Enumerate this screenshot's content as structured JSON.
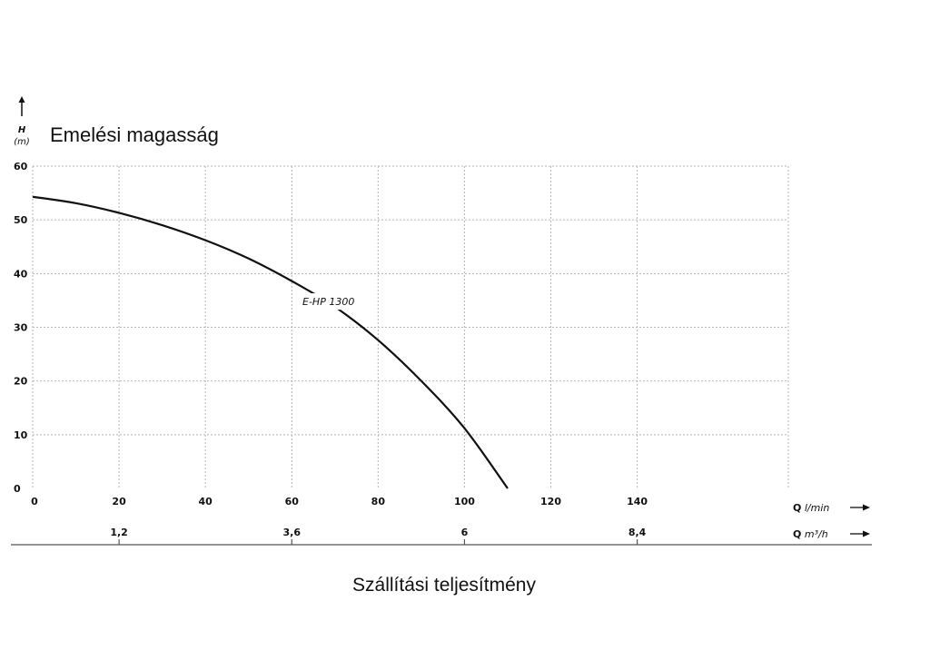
{
  "chart_data": {
    "type": "line",
    "title": "Emelési magasság",
    "xlabel": "Szállítási teljesítmény",
    "y_axis": {
      "symbol": "H",
      "unit": "(m)",
      "ticks": [
        0,
        10,
        20,
        30,
        40,
        50,
        60
      ],
      "range": [
        0,
        60
      ]
    },
    "x_axis_primary": {
      "symbol": "Q",
      "unit": "l/min",
      "ticks": [
        0,
        20,
        40,
        60,
        80,
        100,
        120,
        140
      ],
      "range": [
        0,
        175
      ]
    },
    "x_axis_secondary": {
      "symbol": "Q",
      "unit": "m³/h",
      "ticks": [
        {
          "label": "1,2",
          "value": 1.2
        },
        {
          "label": "3,6",
          "value": 3.6
        },
        {
          "label": "6",
          "value": 6
        },
        {
          "label": "8,4",
          "value": 8.4
        }
      ]
    },
    "grid": true,
    "series": [
      {
        "name": "E-HP 1300",
        "x": [
          0,
          10,
          20,
          30,
          40,
          50,
          60,
          70,
          80,
          90,
          100,
          110
        ],
        "y": [
          54.3,
          53.1,
          51.3,
          49.0,
          46.2,
          42.8,
          38.6,
          33.8,
          27.6,
          20.0,
          11.2,
          0
        ]
      }
    ]
  }
}
